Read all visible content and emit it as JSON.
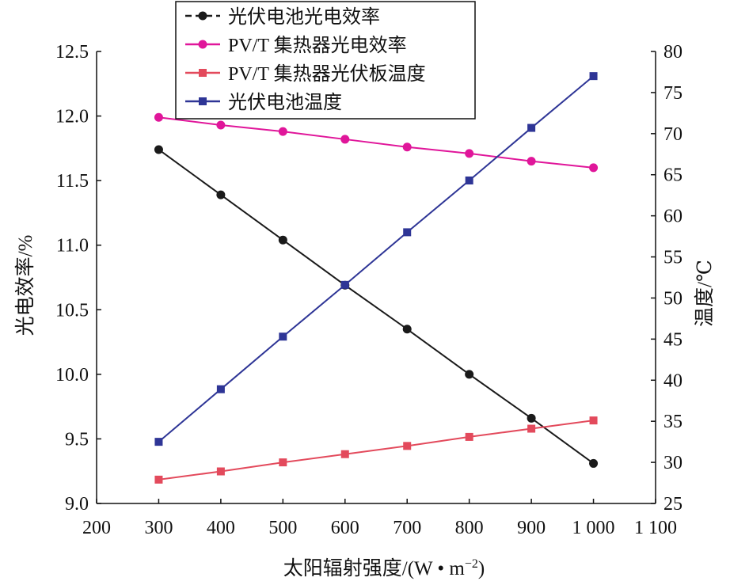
{
  "chart_data": {
    "type": "line",
    "xlabel": "太阳辐射强度/(W • m",
    "xlabel_sup": "−2",
    "xlabel_close": ")",
    "ylabel_left": "光电效率/%",
    "ylabel_right": "温度/℃",
    "xlim": [
      200,
      1100
    ],
    "ylim_left": [
      9.0,
      12.5
    ],
    "ylim_right": [
      25,
      80
    ],
    "x_ticks": [
      200,
      300,
      400,
      500,
      600,
      700,
      800,
      900,
      1000,
      1100
    ],
    "x_tick_labels": [
      "200",
      "300",
      "400",
      "500",
      "600",
      "700",
      "800",
      "900",
      "1 000",
      "1 100"
    ],
    "y_left_ticks": [
      "9.0",
      "9.5",
      "10.0",
      "10.5",
      "11.0",
      "11.5",
      "12.0",
      "12.5"
    ],
    "y_right_ticks": [
      "25",
      "30",
      "35",
      "40",
      "45",
      "50",
      "55",
      "60",
      "65",
      "70",
      "75",
      "80"
    ],
    "x": [
      300,
      400,
      500,
      600,
      700,
      800,
      900,
      1000
    ],
    "legend_position": "top-left",
    "grid": false,
    "series": [
      {
        "name": "光伏电池光电效率",
        "axis": "left",
        "color": "#1a1a1a",
        "marker": "circle",
        "values": [
          11.74,
          11.39,
          11.04,
          10.69,
          10.35,
          10.0,
          9.66,
          9.31
        ]
      },
      {
        "name": "PV/T 集热器光电效率",
        "axis": "left",
        "color": "#e0169a",
        "marker": "circle",
        "values": [
          11.99,
          11.93,
          11.88,
          11.82,
          11.76,
          11.71,
          11.65,
          11.6
        ]
      },
      {
        "name": "PV/T 集热器光伏板温度",
        "axis": "right",
        "color": "#e34a5c",
        "marker": "square",
        "values": [
          27.9,
          28.9,
          30.0,
          31.0,
          32.0,
          33.1,
          34.1,
          35.1
        ]
      },
      {
        "name": "光伏电池温度",
        "axis": "right",
        "color": "#2e3596",
        "marker": "square",
        "values": [
          32.5,
          38.9,
          45.3,
          51.6,
          58.0,
          64.3,
          70.7,
          77.0
        ]
      }
    ]
  }
}
